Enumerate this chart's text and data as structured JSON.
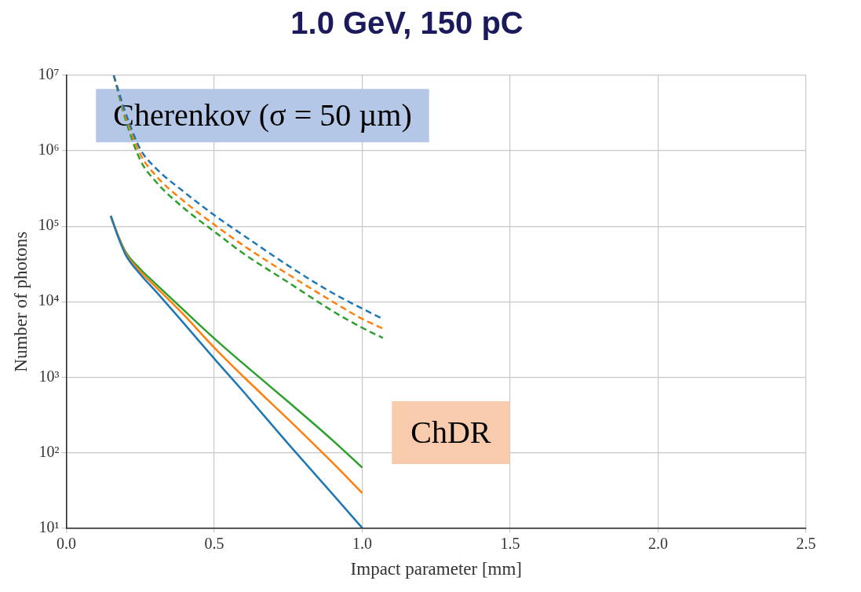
{
  "chart_data": {
    "type": "line",
    "title": "1.0 GeV, 150 pC",
    "xlabel": "Impact parameter [mm]",
    "ylabel": "Number of photons",
    "annotations": [
      "Cherenkov (σ = 50 µm)",
      "ChDR"
    ],
    "log": "y",
    "grid": true,
    "legend": false,
    "xlim": [
      0,
      2.5
    ],
    "xticks": [
      {
        "value": 0,
        "label": "0.0"
      },
      0.5,
      {
        "value": 1,
        "label": "1.0"
      },
      1.5,
      {
        "value": 2,
        "label": "2.0"
      },
      2.5
    ],
    "ylim": [
      10,
      10000000
    ],
    "yticks": [
      {
        "value": 10,
        "label": "10¹"
      },
      {
        "value": 100,
        "label": "10²"
      },
      {
        "value": 1000,
        "label": "10³"
      },
      {
        "value": 10000,
        "label": "10⁴"
      },
      {
        "value": 100000,
        "label": "10⁵"
      },
      {
        "value": 1000000,
        "label": "10⁶"
      },
      {
        "value": 10000000,
        "label": "10⁷"
      }
    ],
    "series": [
      {
        "color": "#1f77b4",
        "line_style": "dashed",
        "x": [
          0.16,
          0.2,
          0.25,
          0.3,
          0.4,
          0.5,
          0.6,
          0.75,
          0.9,
          1.0,
          1.07
        ],
        "values": [
          10000000,
          3200000,
          1050000,
          600000,
          280000,
          140000,
          75000,
          30000,
          13000,
          8100,
          5900
        ]
      },
      {
        "color": "#ff7f0e",
        "line_style": "dashed",
        "x": [
          0.16,
          0.2,
          0.25,
          0.3,
          0.4,
          0.5,
          0.6,
          0.75,
          0.9,
          1.0,
          1.07
        ],
        "values": [
          10000000,
          2900000,
          900000,
          480000,
          210000,
          105000,
          55000,
          23000,
          10000,
          5900,
          4400
        ]
      },
      {
        "color": "#2ca02c",
        "line_style": "dashed",
        "x": [
          0.16,
          0.2,
          0.25,
          0.3,
          0.4,
          0.5,
          0.6,
          0.75,
          0.9,
          1.0,
          1.07
        ],
        "values": [
          10000000,
          2600000,
          750000,
          400000,
          170000,
          85000,
          43000,
          18000,
          7500,
          4500,
          3300
        ]
      },
      {
        "color": "#1f77b4",
        "line_style": "solid",
        "x": [
          0.15,
          0.175,
          0.2,
          0.25,
          0.3,
          0.4,
          0.5,
          0.6,
          0.75,
          0.9,
          1.0
        ],
        "values": [
          137000,
          72000,
          42000,
          23000,
          14000,
          5000,
          1750,
          630,
          130,
          28,
          10
        ]
      },
      {
        "color": "#ff7f0e",
        "line_style": "solid",
        "x": [
          0.15,
          0.175,
          0.2,
          0.25,
          0.3,
          0.4,
          0.5,
          0.6,
          0.75,
          0.9,
          1.0
        ],
        "values": [
          137000,
          74000,
          44000,
          25000,
          16000,
          6500,
          2450,
          1000,
          275,
          73,
          29
        ]
      },
      {
        "color": "#2ca02c",
        "line_style": "solid",
        "x": [
          0.15,
          0.175,
          0.2,
          0.25,
          0.3,
          0.4,
          0.5,
          0.6,
          0.75,
          0.9,
          1.0
        ],
        "values": [
          137000,
          75000,
          46000,
          27000,
          17500,
          7500,
          3250,
          1480,
          470,
          145,
          63
        ]
      }
    ]
  }
}
